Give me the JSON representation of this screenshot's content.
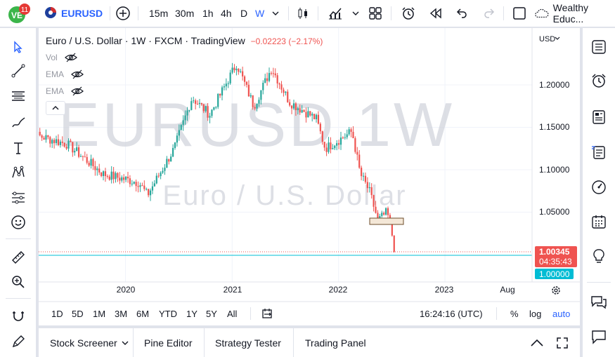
{
  "topbar": {
    "logo_badge": "11",
    "symbol": "EURUSD",
    "intervals": [
      "15m",
      "30m",
      "1h",
      "4h",
      "D",
      "W"
    ],
    "active_interval": "W",
    "account": "Wealthy Educ..."
  },
  "legend": {
    "title": "Euro / U.S. Dollar · 1W · FXCM · TradingView",
    "change": "−0.02223 (−2.17%)",
    "indicators": [
      "Vol",
      "EMA",
      "EMA"
    ]
  },
  "watermark": {
    "symbol_interval": "EURUSD 1W",
    "description": "Euro / U.S. Dollar"
  },
  "price_axis": {
    "currency": "USD",
    "ticks": [
      "1.20000",
      "1.15000",
      "1.10000",
      "1.05000"
    ],
    "last_price": "1.00345",
    "countdown": "04:35:43",
    "line_price": "1.00000"
  },
  "time_axis": {
    "ticks": [
      "2020",
      "2021",
      "2022",
      "2023",
      "Aug"
    ]
  },
  "range_bar": {
    "ranges": [
      "1D",
      "5D",
      "1M",
      "3M",
      "6M",
      "YTD",
      "1Y",
      "5Y",
      "All"
    ],
    "clock": "16:24:16 (UTC)",
    "percent": "%",
    "log": "log",
    "auto": "auto"
  },
  "bottom_panel": {
    "tabs": [
      "Stock Screener",
      "Pine Editor",
      "Strategy Tester",
      "Trading Panel"
    ]
  },
  "colors": {
    "up": "#26a69a",
    "down": "#ef5350",
    "accent": "#2962ff",
    "hline": "#00bcd4"
  },
  "chart_data": {
    "type": "candlestick",
    "title": "Euro / U.S. Dollar · 1W · FXCM · TradingView",
    "x": "weekly dates, Jan 2019 – Jul 2022",
    "ylim": [
      0.97,
      1.245
    ],
    "y_ticks": [
      1.2,
      1.15,
      1.1,
      1.05
    ],
    "x_ticks": [
      "2020",
      "2021",
      "2022",
      "2023",
      "Aug"
    ],
    "key_points": [
      {
        "date": "2019-01",
        "close": 1.145
      },
      {
        "date": "2019-06",
        "close": 1.13
      },
      {
        "date": "2019-10",
        "close": 1.095
      },
      {
        "date": "2020-02",
        "close": 1.085
      },
      {
        "date": "2020-03",
        "close": 1.07
      },
      {
        "date": "2020-06",
        "close": 1.125
      },
      {
        "date": "2020-08",
        "close": 1.185
      },
      {
        "date": "2020-10",
        "close": 1.165
      },
      {
        "date": "2021-01",
        "close": 1.225
      },
      {
        "date": "2021-03",
        "close": 1.175
      },
      {
        "date": "2021-05",
        "close": 1.22
      },
      {
        "date": "2021-07",
        "close": 1.18
      },
      {
        "date": "2021-10",
        "close": 1.16
      },
      {
        "date": "2021-11",
        "close": 1.125
      },
      {
        "date": "2022-02",
        "close": 1.145
      },
      {
        "date": "2022-03",
        "close": 1.095
      },
      {
        "date": "2022-04",
        "close": 1.075
      },
      {
        "date": "2022-05",
        "close": 1.04
      },
      {
        "date": "2022-06",
        "close": 1.05
      },
      {
        "date": "2022-07",
        "close": 1.00345
      }
    ],
    "horizontal_line": 1.0,
    "last_price": 1.00345,
    "rectangle": {
      "from": "2022-05",
      "to": "2022-07",
      "low": 1.035,
      "high": 1.042
    }
  }
}
